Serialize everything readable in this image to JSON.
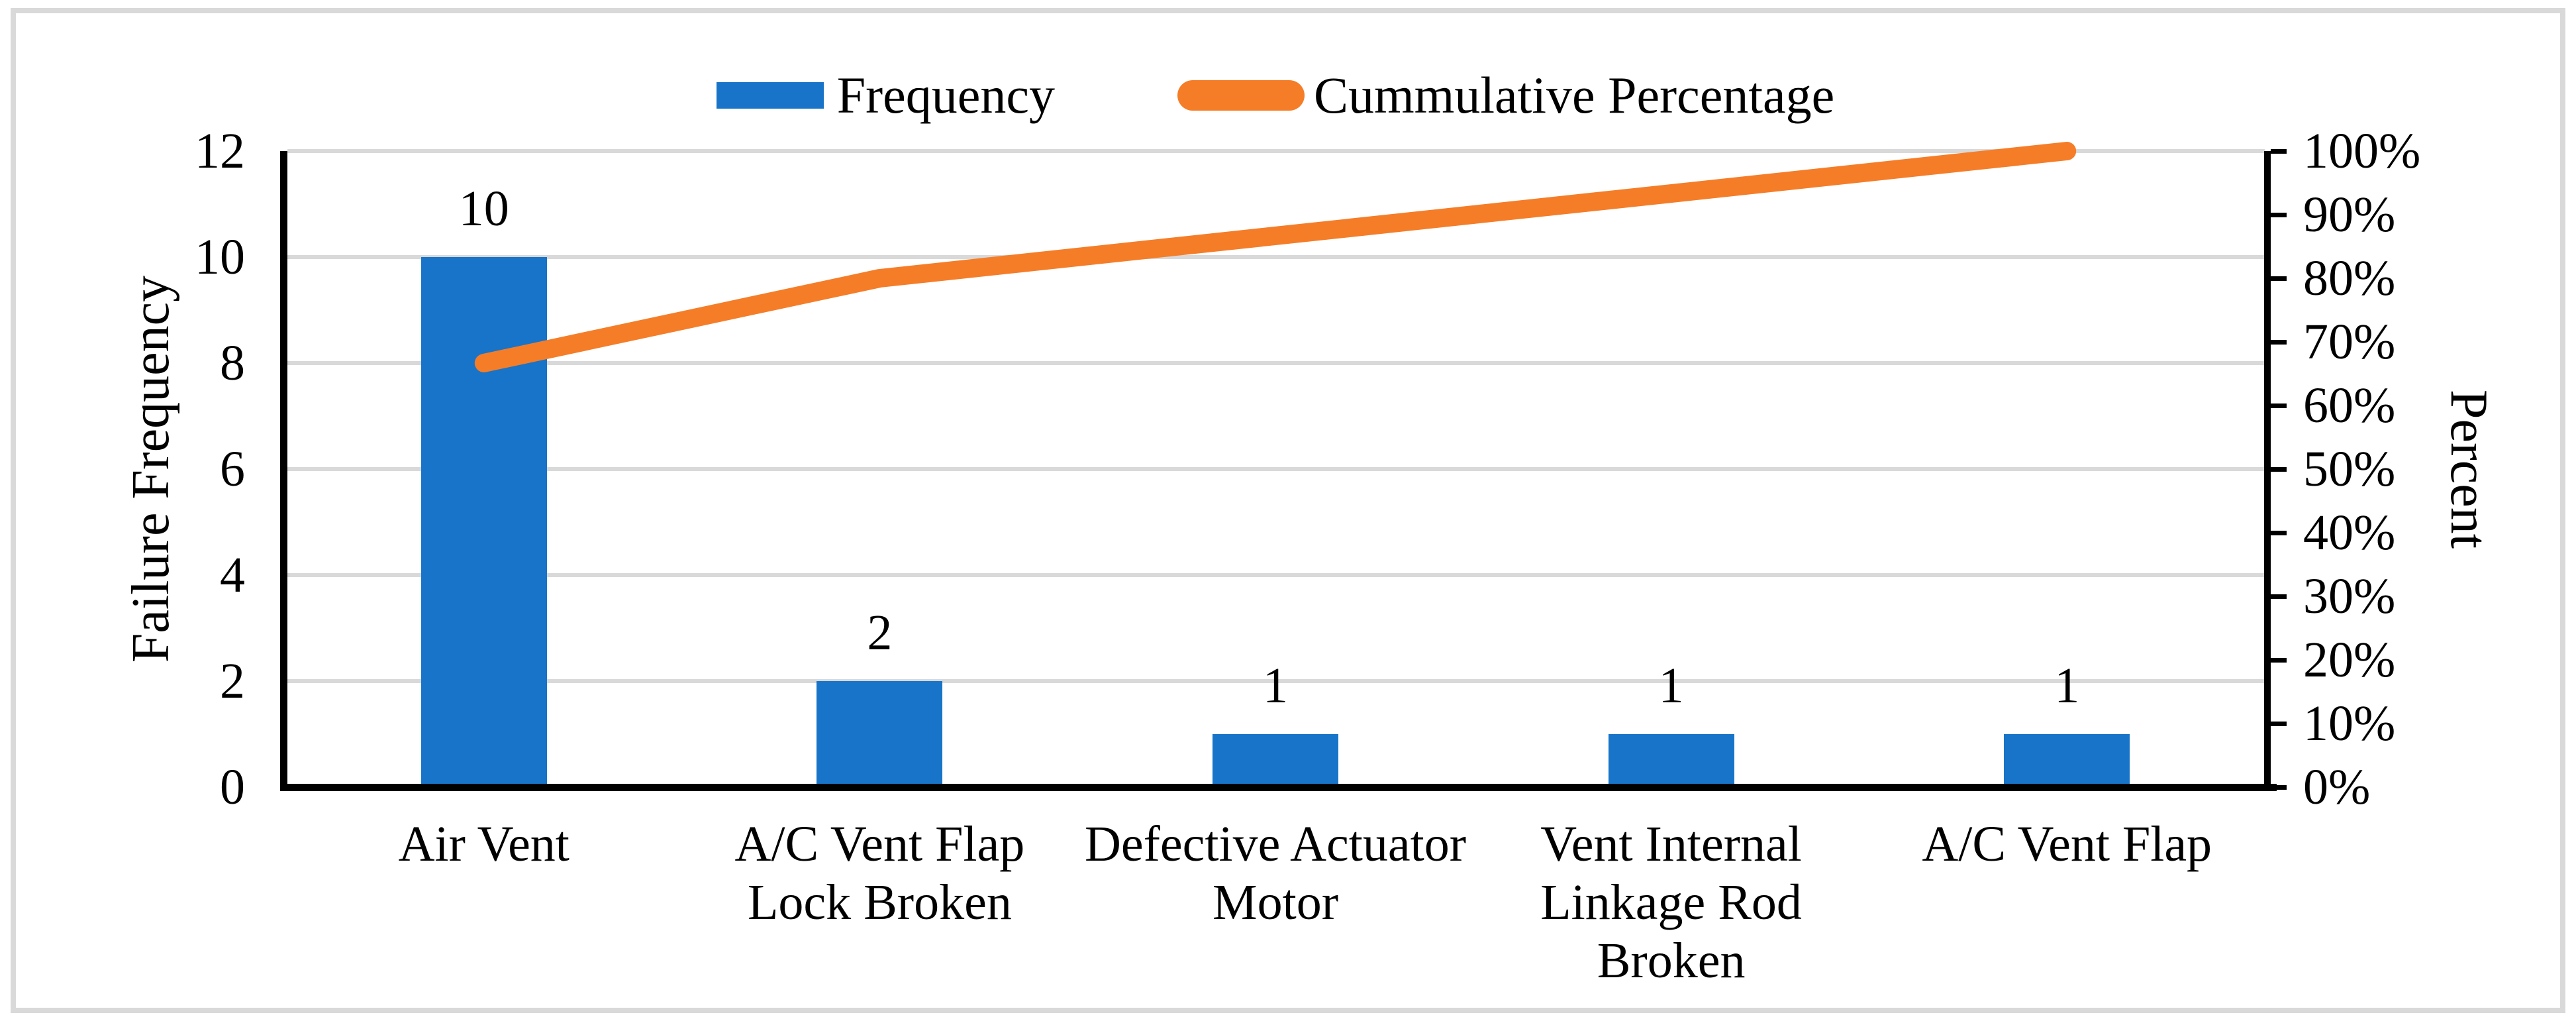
{
  "figure": {
    "kind": "pareto-chart",
    "background": "#FFFFFF",
    "border_color": "#D9D9D9"
  },
  "colors": {
    "bar_blue": "#1874C8",
    "line_orange": "#F57D28",
    "gridline": "#D9D9D9",
    "axis": "#000000"
  },
  "chart_data": {
    "type": "bar",
    "subtype": "pareto-combo (bars + cumulative line)",
    "title": "",
    "legend_position": "top-center",
    "grid": "horizontal",
    "categories": [
      "Air Vent",
      "A/C Vent Flap Lock Broken",
      "Defective Actuator Motor",
      "Vent Internal Linkage Rod Broken",
      "A/C Vent Flap"
    ],
    "categories_lines": [
      [
        "Air Vent"
      ],
      [
        "A/C Vent Flap",
        "Lock Broken"
      ],
      [
        "Defective Actuator",
        "Motor"
      ],
      [
        "Vent Internal",
        "Linkage Rod",
        "Broken"
      ],
      [
        "A/C Vent Flap"
      ]
    ],
    "series": [
      {
        "name": "Frequency",
        "chart": "bar",
        "axis": "left",
        "values": [
          10,
          2,
          1,
          1,
          1
        ],
        "data_labels": [
          "10",
          "2",
          "1",
          "1",
          "1"
        ],
        "color": "#1874C8"
      },
      {
        "name": "Cummulative Percentage",
        "chart": "line",
        "axis": "right",
        "values": [
          66.67,
          80.0,
          86.67,
          93.33,
          100.0
        ],
        "color": "#F57D28"
      }
    ],
    "left_axis": {
      "title": "Failure Frequency",
      "min": 0,
      "max": 12,
      "tick_step": 2,
      "ticks": [
        "0",
        "2",
        "4",
        "6",
        "8",
        "10",
        "12"
      ]
    },
    "right_axis": {
      "title": "Percent",
      "min": 0,
      "max": 100,
      "tick_step": 10,
      "ticks": [
        "0%",
        "10%",
        "20%",
        "30%",
        "40%",
        "50%",
        "60%",
        "70%",
        "80%",
        "90%",
        "100%"
      ]
    }
  }
}
